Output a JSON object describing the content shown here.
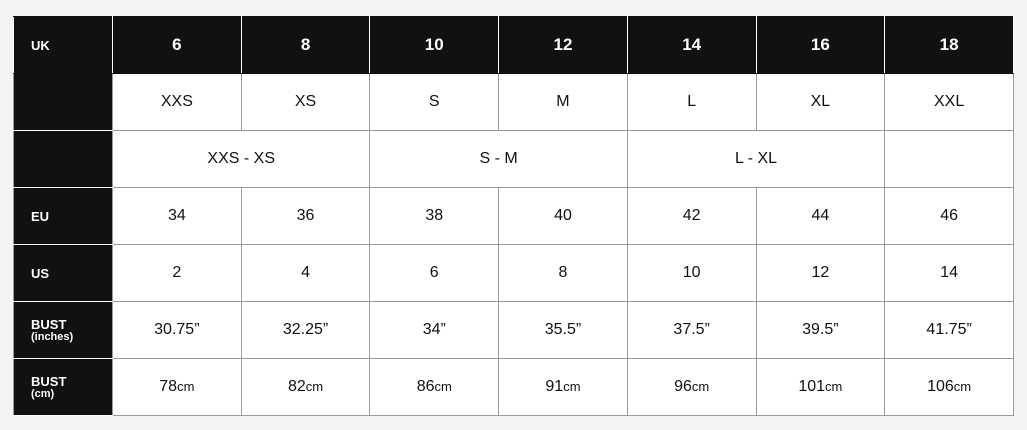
{
  "header": {
    "label": "UK",
    "sizes": [
      "6",
      "8",
      "10",
      "12",
      "14",
      "16",
      "18"
    ]
  },
  "letter_row": {
    "label": "",
    "values": [
      "XXS",
      "XS",
      "S",
      "M",
      "L",
      "XL",
      "XXL"
    ]
  },
  "range_row": {
    "label": "",
    "values": [
      "XXS - XS",
      "S - M",
      "L - XL",
      ""
    ]
  },
  "eu_row": {
    "label": "EU",
    "values": [
      "34",
      "36",
      "38",
      "40",
      "42",
      "44",
      "46"
    ]
  },
  "us_row": {
    "label": "US",
    "values": [
      "2",
      "4",
      "6",
      "8",
      "10",
      "12",
      "14"
    ]
  },
  "bust_in_row": {
    "label": "BUST",
    "sublabel": "(inches)",
    "values": [
      "30.75”",
      "32.25”",
      "34”",
      "35.5”",
      "37.5”",
      "39.5”",
      "41.75”"
    ]
  },
  "bust_cm_row": {
    "label": "BUST",
    "sublabel": "(cm)",
    "unit": "cm",
    "values": [
      "78",
      "82",
      "86",
      "91",
      "96",
      "101",
      "106"
    ]
  }
}
